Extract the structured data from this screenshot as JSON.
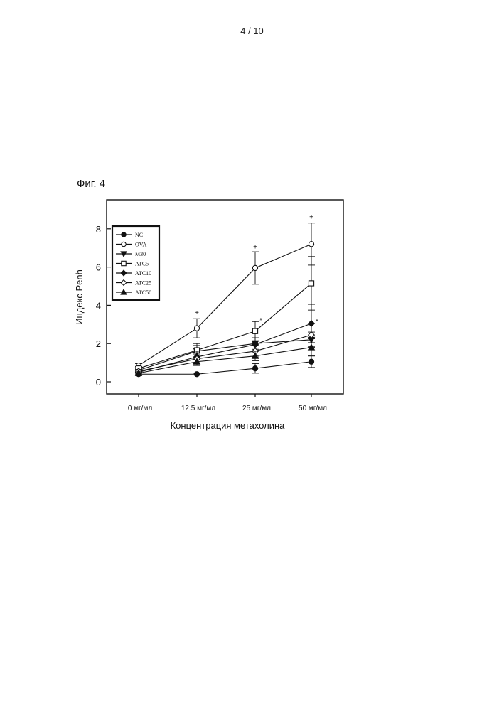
{
  "header": {
    "page_number": "4 / 10"
  },
  "figure": {
    "caption": "Фиг. 4"
  },
  "chart_data": {
    "type": "line",
    "title": "",
    "xlabel": "Концентрация метахолина",
    "ylabel": "Индекс Penh",
    "categories": [
      "0 мг/мл",
      "12.5 мг/мл",
      "25 мг/мл",
      "50 мг/мл"
    ],
    "ylim": [
      -0.6,
      9.5
    ],
    "yticks": [
      "0",
      "2",
      "4",
      "6",
      "8"
    ],
    "legend_position": "top-left",
    "series": [
      {
        "name": "NC",
        "marker": "circle-filled",
        "values": [
          0.4,
          0.4,
          0.7,
          1.05
        ],
        "errors": [
          0.05,
          0.05,
          0.25,
          0.3
        ]
      },
      {
        "name": "OVA",
        "marker": "circle-open",
        "values": [
          0.85,
          2.8,
          5.95,
          7.2
        ],
        "errors": [
          0.1,
          0.5,
          0.85,
          1.1
        ]
      },
      {
        "name": "M30",
        "marker": "triangle-down-filled",
        "values": [
          0.6,
          1.6,
          2.0,
          2.2
        ],
        "errors": [
          0.1,
          0.3,
          0.3,
          0.4
        ]
      },
      {
        "name": "ATC5",
        "marker": "square-open",
        "values": [
          0.7,
          1.65,
          2.65,
          5.15
        ],
        "errors": [
          0.1,
          0.35,
          0.5,
          1.4
        ]
      },
      {
        "name": "ATC10",
        "marker": "diamond-filled",
        "values": [
          0.5,
          1.3,
          1.95,
          3.05
        ],
        "errors": [
          0.1,
          0.3,
          0.35,
          1.0
        ]
      },
      {
        "name": "ATC25",
        "marker": "diamond-open",
        "values": [
          0.55,
          1.2,
          1.6,
          2.45
        ],
        "errors": [
          0.1,
          0.25,
          0.3,
          0.6
        ]
      },
      {
        "name": "ATC50",
        "marker": "triangle-up-filled",
        "values": [
          0.45,
          1.05,
          1.35,
          1.8
        ],
        "errors": [
          0.1,
          0.2,
          0.25,
          0.45
        ]
      }
    ],
    "annotations": [
      {
        "text": "+",
        "x": "12.5 мг/мл",
        "y": 3.6
      },
      {
        "text": "+",
        "x": "25 мг/мл",
        "y": 7.05
      },
      {
        "text": "+",
        "x": "50 мг/мл",
        "y": 8.6
      },
      {
        "text": "*",
        "x": "25 мг/мл",
        "y": 3.2
      },
      {
        "text": "*",
        "x": "50 мг/мл",
        "y": 3.15
      }
    ]
  }
}
